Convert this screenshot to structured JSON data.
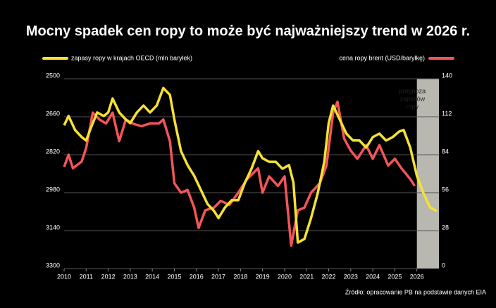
{
  "chart_data": {
    "type": "line",
    "title": "Mocny spadek cen ropy to może być najważniejszy trend w 2026 r.",
    "source": "Źródło: opracowanie PB na podstawie danych EIA",
    "xlim": [
      2010,
      2027
    ],
    "xticks": [
      2010,
      2011,
      2012,
      2013,
      2014,
      2015,
      2016,
      2017,
      2018,
      2019,
      2020,
      2021,
      2022,
      2023,
      2024,
      2025,
      2026
    ],
    "ylim": [
      3300,
      2500
    ],
    "yticks": [
      2500,
      2660,
      2820,
      2980,
      3140,
      3300
    ],
    "y2lim": [
      0,
      140
    ],
    "y2ticks": [
      140,
      112,
      84,
      56,
      28,
      0
    ],
    "grid": true,
    "forecast": {
      "xlim": [
        2026,
        2027
      ],
      "color": "#b8b8b0",
      "label_lines": [
        "prognoza",
        "zapasów",
        "ropy"
      ]
    },
    "series": [
      {
        "name": "zapasy ropy w krajach OECD (mln baryłek)",
        "color": "#f5e232",
        "axis": "y",
        "x": [
          2010.0,
          2010.2,
          2010.5,
          2010.8,
          2011.0,
          2011.2,
          2011.5,
          2011.8,
          2012.0,
          2012.2,
          2012.5,
          2012.8,
          2013.0,
          2013.3,
          2013.6,
          2013.9,
          2014.2,
          2014.5,
          2014.8,
          2015.0,
          2015.3,
          2015.6,
          2015.9,
          2016.2,
          2016.5,
          2016.8,
          2017.0,
          2017.3,
          2017.6,
          2017.9,
          2018.2,
          2018.5,
          2018.8,
          2019.0,
          2019.3,
          2019.6,
          2019.9,
          2020.2,
          2020.4,
          2020.6,
          2020.9,
          2021.2,
          2021.5,
          2021.8,
          2022.0,
          2022.2,
          2022.5,
          2022.8,
          2023.1,
          2023.4,
          2023.7,
          2024.0,
          2024.3,
          2024.6,
          2024.9,
          2025.2,
          2025.4,
          2025.7,
          2026.0,
          2026.3,
          2026.6,
          2026.9
        ],
        "values": [
          2696,
          2657,
          2716,
          2746,
          2760,
          2710,
          2642,
          2657,
          2642,
          2583,
          2642,
          2672,
          2687,
          2642,
          2613,
          2642,
          2613,
          2539,
          2568,
          2672,
          2805,
          2864,
          2909,
          2968,
          3027,
          3057,
          3087,
          3042,
          3012,
          3012,
          2938,
          2879,
          2805,
          2835,
          2850,
          2850,
          2879,
          2864,
          2938,
          3190,
          3175,
          3087,
          2983,
          2850,
          2687,
          2613,
          2672,
          2731,
          2760,
          2760,
          2790,
          2746,
          2731,
          2760,
          2746,
          2722,
          2716,
          2790,
          2909,
          2983,
          3042,
          3057
        ]
      },
      {
        "name": "cena ropy brent (USD/baryłkę)",
        "color": "#f2555a",
        "axis": "y2",
        "x": [
          2010.0,
          2010.2,
          2010.4,
          2010.8,
          2011.0,
          2011.3,
          2011.6,
          2011.9,
          2012.2,
          2012.5,
          2012.8,
          2013.1,
          2013.5,
          2013.9,
          2014.3,
          2014.5,
          2014.8,
          2015.0,
          2015.3,
          2015.6,
          2015.9,
          2016.1,
          2016.4,
          2016.8,
          2017.1,
          2017.5,
          2017.9,
          2018.3,
          2018.8,
          2019.0,
          2019.3,
          2019.7,
          2020.0,
          2020.3,
          2020.6,
          2020.9,
          2021.2,
          2021.6,
          2021.9,
          2022.2,
          2022.4,
          2022.7,
          2023.0,
          2023.3,
          2023.7,
          2024.0,
          2024.3,
          2024.7,
          2025.0,
          2025.3,
          2025.7,
          2025.9
        ],
        "values": [
          75,
          84,
          74,
          79,
          89,
          115,
          110,
          107,
          115,
          94,
          110,
          107,
          105,
          107,
          107,
          110,
          94,
          63,
          56,
          58,
          45,
          30,
          43,
          45,
          50,
          47,
          56,
          66,
          74,
          56,
          68,
          61,
          68,
          17,
          43,
          45,
          56,
          63,
          76,
          115,
          123,
          96,
          87,
          81,
          91,
          81,
          91,
          76,
          81,
          74,
          66,
          61
        ]
      }
    ]
  }
}
